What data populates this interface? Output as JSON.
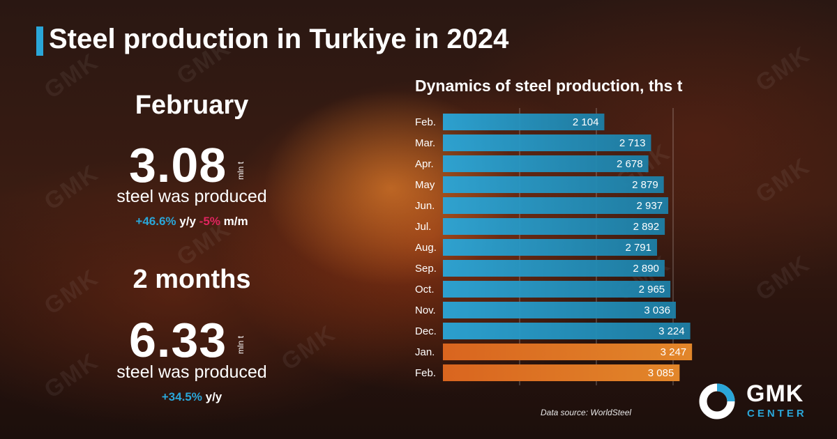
{
  "title": "Steel production in Turkiye in 2024",
  "month_block": {
    "heading": "February",
    "value": "3.08",
    "unit": "mln t",
    "caption": "steel was produced",
    "yoy_value": "+46.6%",
    "yoy_label": "y/y",
    "mom_value": "-5%",
    "mom_label": "m/m"
  },
  "period_block": {
    "heading": "2 months",
    "value": "6.33",
    "unit": "mln t",
    "caption": "steel was produced",
    "yoy_value": "+34.5%",
    "yoy_label": "y/y"
  },
  "source": "Data source: WorldSteel",
  "logo": {
    "word": "GMK",
    "sub": "CENTER"
  },
  "watermark_text": "GMK",
  "colors": {
    "accent_blue": "#2aa6d8",
    "negative_pink": "#e0245e",
    "bar_blue": "#1d7fa6",
    "bar_orange": "#e2862a"
  },
  "chart_data": {
    "type": "bar",
    "orientation": "horizontal",
    "title": "Dynamics of steel production, ths t",
    "categories": [
      "Feb.",
      "Mar.",
      "Apr.",
      "May",
      "Jun.",
      "Jul.",
      "Aug.",
      "Sep.",
      "Oct.",
      "Nov.",
      "Dec.",
      "Jan.",
      "Feb."
    ],
    "values": [
      2104,
      2713,
      2678,
      2879,
      2937,
      2892,
      2791,
      2890,
      2965,
      3036,
      3224,
      3247,
      3085
    ],
    "value_labels": [
      "2 104",
      "2 713",
      "2 678",
      "2 879",
      "2 937",
      "2 892",
      "2 791",
      "2 890",
      "2 965",
      "3 036",
      "3 224",
      "3 247",
      "3 085"
    ],
    "highlight": [
      false,
      false,
      false,
      false,
      false,
      false,
      false,
      false,
      false,
      false,
      false,
      true,
      true
    ],
    "xlim": [
      0,
      3500
    ],
    "grid": true
  }
}
